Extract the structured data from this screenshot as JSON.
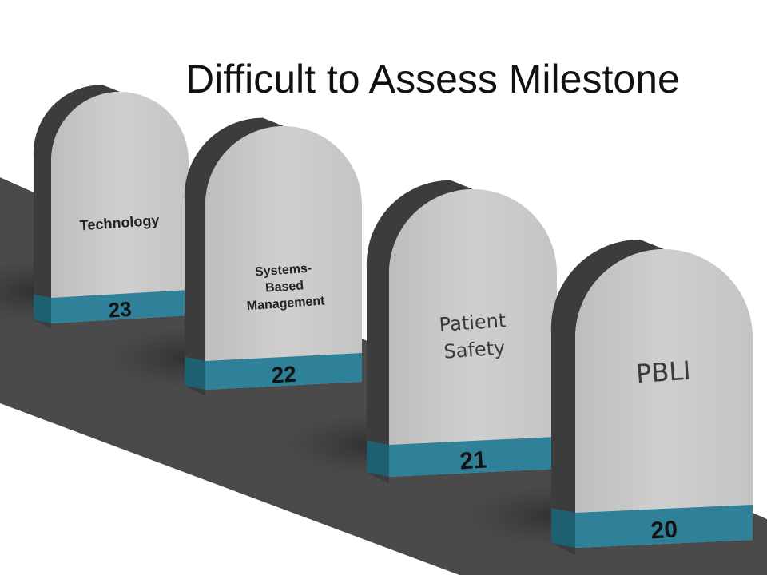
{
  "slide": {
    "title": "Difficult to Assess Milestone"
  },
  "milestones": [
    {
      "number": "23",
      "label_lines": [
        "Technology"
      ]
    },
    {
      "number": "22",
      "label_lines": [
        "Systems-",
        "Based",
        "Management"
      ]
    },
    {
      "number": "21",
      "label_lines": [
        "Patient",
        "Safety"
      ]
    },
    {
      "number": "20",
      "label_lines": [
        "PBLI"
      ]
    }
  ],
  "colors": {
    "road": "#4a4a4a",
    "stone_face": "#c8c8c8",
    "stone_side": "#5e5e5e",
    "stone_top": "#3c3c3c",
    "band_front": "#2f8099",
    "band_side": "#1f5f72"
  }
}
